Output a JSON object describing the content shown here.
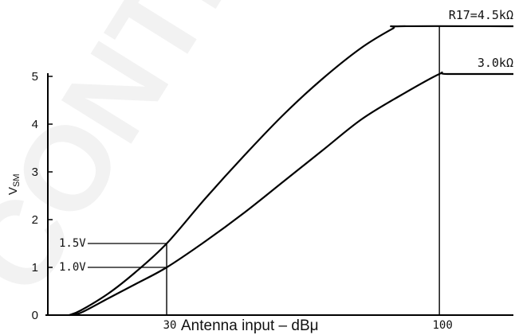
{
  "watermark": "CONTINUE",
  "chart_data": {
    "type": "line",
    "xlabel": "Antenna input – dBμ",
    "ylabel": "V",
    "ylabel_sub": "SM",
    "x_tick_labels": [
      30,
      100
    ],
    "y_tick_labels": [
      0,
      1,
      2,
      3,
      4,
      5
    ],
    "xlim": [
      -0.5,
      119
    ],
    "ylim": [
      0,
      6
    ],
    "series": [
      {
        "name": "R17=4.5kΩ",
        "color": "#000000",
        "points": [
          [
            5,
            0
          ],
          [
            8,
            0.1
          ],
          [
            15,
            0.45
          ],
          [
            22,
            0.9
          ],
          [
            30,
            1.5
          ],
          [
            40,
            2.45
          ],
          [
            50,
            3.35
          ],
          [
            60,
            4.2
          ],
          [
            70,
            4.95
          ],
          [
            80,
            5.6
          ],
          [
            88,
            6.0
          ],
          [
            90,
            6.05
          ],
          [
            119,
            6.05
          ]
        ]
      },
      {
        "name": "3.0kΩ",
        "color": "#000000",
        "points": [
          [
            5,
            0
          ],
          [
            8,
            0.05
          ],
          [
            15,
            0.35
          ],
          [
            22,
            0.65
          ],
          [
            30,
            1.0
          ],
          [
            40,
            1.55
          ],
          [
            50,
            2.15
          ],
          [
            60,
            2.8
          ],
          [
            70,
            3.45
          ],
          [
            80,
            4.1
          ],
          [
            90,
            4.6
          ],
          [
            100,
            5.05
          ],
          [
            102,
            5.05
          ],
          [
            119,
            5.05
          ]
        ]
      }
    ],
    "annotations": [
      {
        "text": "1.5V",
        "x": 30,
        "y": 1.5
      },
      {
        "text": "1.0V",
        "x": 30,
        "y": 1.0
      }
    ],
    "guide_lines_x": [
      30,
      100
    ],
    "grid": false,
    "legend": "inline labels at line ends"
  }
}
